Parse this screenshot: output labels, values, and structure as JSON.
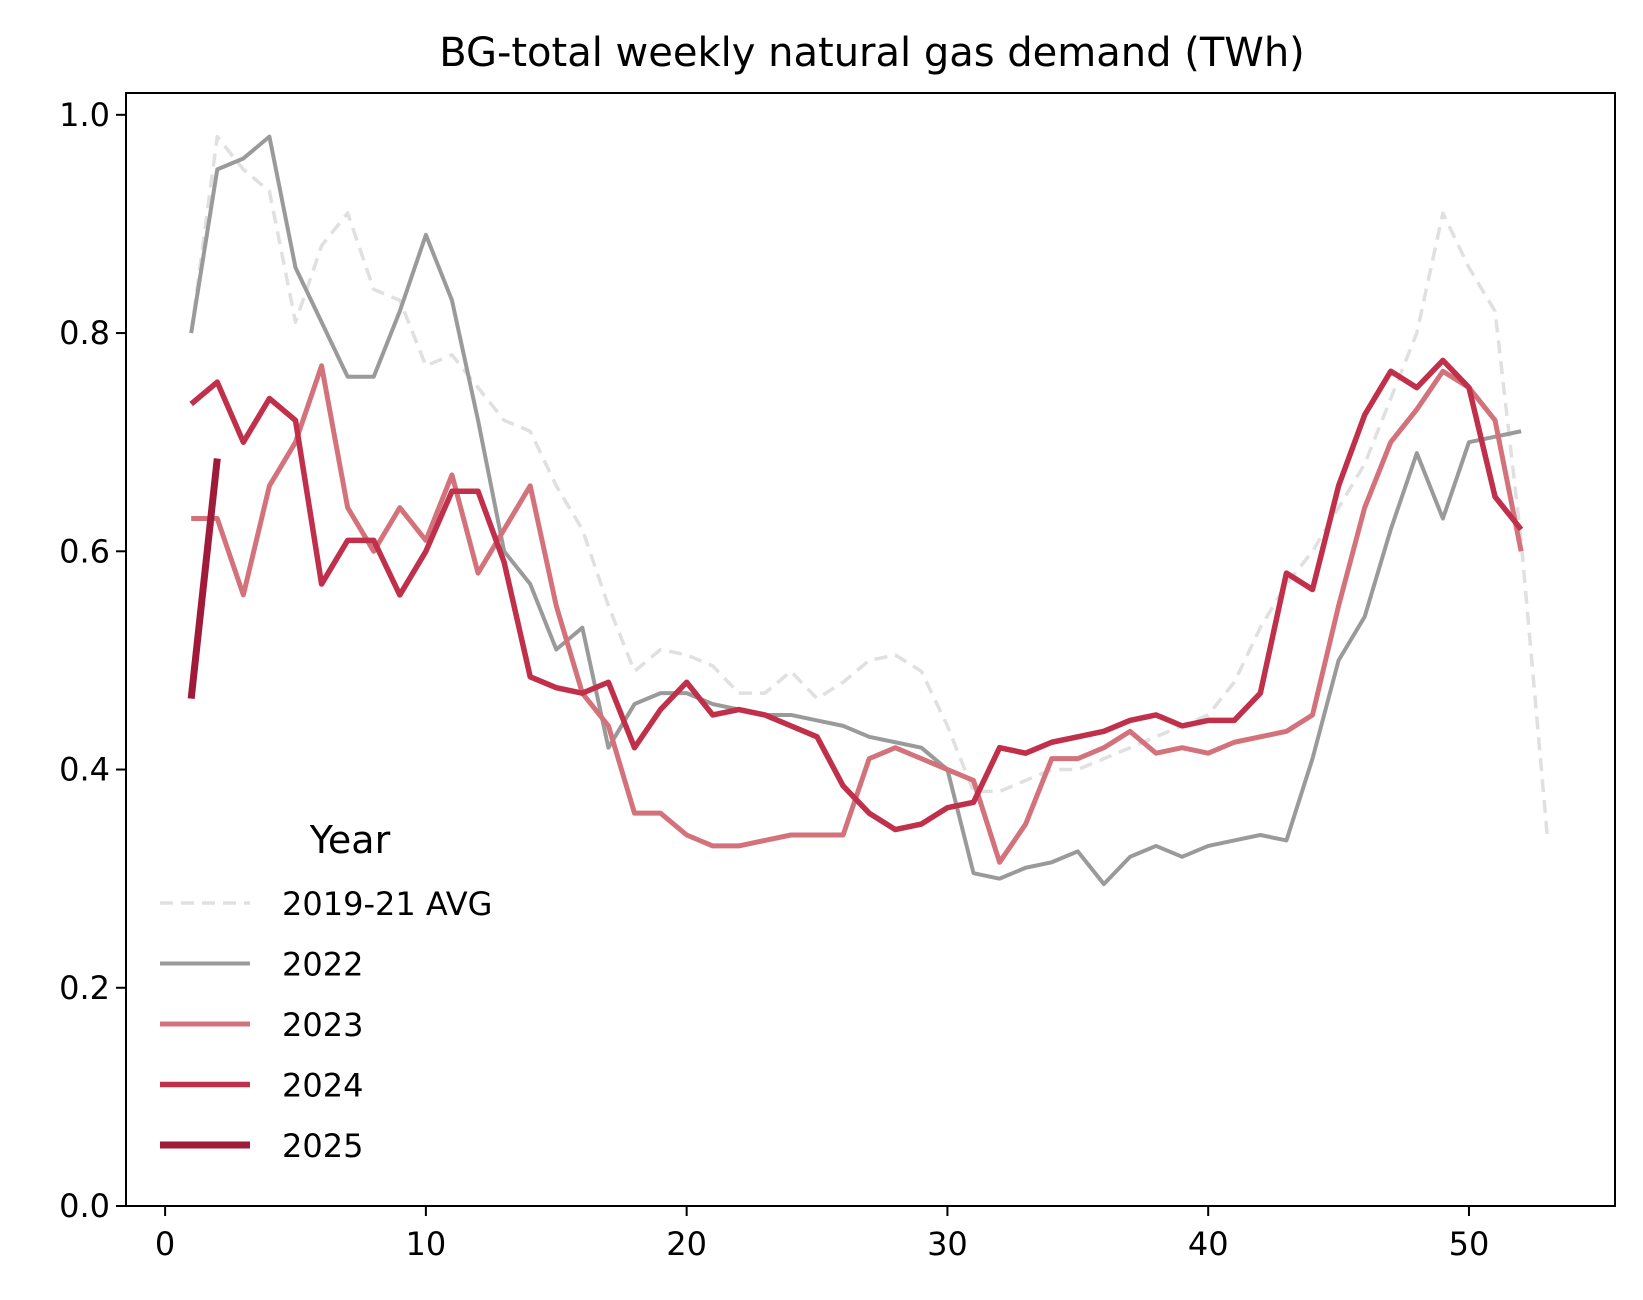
{
  "chart_data": {
    "type": "line",
    "title": "BG-total weekly natural gas demand (TWh)",
    "xlabel": "",
    "ylabel": "",
    "xlim": [
      -1.5,
      55.6
    ],
    "ylim": [
      0,
      1.02
    ],
    "xticks": [
      0,
      10,
      20,
      30,
      40,
      50
    ],
    "xtick_labels": [
      "0",
      "10",
      "20",
      "30",
      "40",
      "50"
    ],
    "yticks": [
      0,
      0.2,
      0.4,
      0.6,
      0.8,
      1.0
    ],
    "ytick_labels": [
      "0.0",
      "0.2",
      "0.4",
      "0.6",
      "0.8",
      "1.0"
    ],
    "grid": false,
    "legend": {
      "title": "Year",
      "placement": "lower-left"
    },
    "series": [
      {
        "name": "2019-21 AVG",
        "color": "#e0e0e0",
        "style": "dashed",
        "x": [
          1,
          2,
          3,
          4,
          5,
          6,
          7,
          8,
          9,
          10,
          11,
          12,
          13,
          14,
          15,
          16,
          17,
          18,
          19,
          20,
          21,
          22,
          23,
          24,
          25,
          26,
          27,
          28,
          29,
          30,
          31,
          32,
          33,
          34,
          35,
          36,
          37,
          38,
          39,
          40,
          41,
          42,
          43,
          44,
          45,
          46,
          47,
          48,
          49,
          50,
          51,
          52,
          53
        ],
        "values": [
          0.8,
          0.98,
          0.95,
          0.93,
          0.81,
          0.88,
          0.91,
          0.84,
          0.83,
          0.77,
          0.78,
          0.75,
          0.72,
          0.71,
          0.66,
          0.62,
          0.55,
          0.49,
          0.51,
          0.505,
          0.495,
          0.47,
          0.47,
          0.49,
          0.465,
          0.48,
          0.5,
          0.505,
          0.49,
          0.44,
          0.38,
          0.38,
          0.39,
          0.4,
          0.4,
          0.41,
          0.42,
          0.43,
          0.44,
          0.45,
          0.48,
          0.53,
          0.57,
          0.6,
          0.64,
          0.68,
          0.74,
          0.8,
          0.91,
          0.86,
          0.82,
          0.61,
          0.34
        ]
      },
      {
        "name": "2022",
        "color": "#9a9a9a",
        "style": "solid",
        "x": [
          1,
          2,
          3,
          4,
          5,
          6,
          7,
          8,
          9,
          10,
          11,
          12,
          13,
          14,
          15,
          16,
          17,
          18,
          19,
          20,
          21,
          22,
          23,
          24,
          25,
          26,
          27,
          28,
          29,
          30,
          31,
          32,
          33,
          34,
          35,
          36,
          37,
          38,
          39,
          40,
          41,
          42,
          43,
          44,
          45,
          46,
          47,
          48,
          49,
          50,
          51,
          52
        ],
        "values": [
          0.8,
          0.95,
          0.96,
          0.98,
          0.86,
          0.81,
          0.76,
          0.76,
          0.82,
          0.89,
          0.83,
          0.72,
          0.6,
          0.57,
          0.51,
          0.53,
          0.42,
          0.46,
          0.47,
          0.47,
          0.46,
          0.455,
          0.45,
          0.45,
          0.445,
          0.44,
          0.43,
          0.425,
          0.42,
          0.4,
          0.305,
          0.3,
          0.31,
          0.315,
          0.325,
          0.295,
          0.32,
          0.33,
          0.32,
          0.33,
          0.335,
          0.34,
          0.335,
          0.41,
          0.5,
          0.54,
          0.62,
          0.69,
          0.63,
          0.7,
          0.705,
          0.71
        ]
      },
      {
        "name": "2023",
        "color": "#d4727b",
        "style": "solid",
        "x": [
          1,
          2,
          3,
          4,
          5,
          6,
          7,
          8,
          9,
          10,
          11,
          12,
          13,
          14,
          15,
          16,
          17,
          18,
          19,
          20,
          21,
          22,
          23,
          24,
          25,
          26,
          27,
          28,
          29,
          30,
          31,
          32,
          33,
          34,
          35,
          36,
          37,
          38,
          39,
          40,
          41,
          42,
          43,
          44,
          45,
          46,
          47,
          48,
          49,
          50,
          51,
          52
        ],
        "values": [
          0.63,
          0.63,
          0.56,
          0.66,
          0.7,
          0.77,
          0.64,
          0.6,
          0.64,
          0.61,
          0.67,
          0.58,
          0.62,
          0.66,
          0.55,
          0.47,
          0.44,
          0.36,
          0.36,
          0.34,
          0.33,
          0.33,
          0.335,
          0.34,
          0.34,
          0.34,
          0.41,
          0.42,
          0.41,
          0.4,
          0.39,
          0.315,
          0.35,
          0.41,
          0.41,
          0.42,
          0.435,
          0.415,
          0.42,
          0.415,
          0.425,
          0.43,
          0.435,
          0.45,
          0.55,
          0.64,
          0.7,
          0.73,
          0.765,
          0.75,
          0.72,
          0.6
        ]
      },
      {
        "name": "2024",
        "color": "#c0304a",
        "style": "solid",
        "x": [
          1,
          2,
          3,
          4,
          5,
          6,
          7,
          8,
          9,
          10,
          11,
          12,
          13,
          14,
          15,
          16,
          17,
          18,
          19,
          20,
          21,
          22,
          23,
          24,
          25,
          26,
          27,
          28,
          29,
          30,
          31,
          32,
          33,
          34,
          35,
          36,
          37,
          38,
          39,
          40,
          41,
          42,
          43,
          44,
          45,
          46,
          47,
          48,
          49,
          50,
          51,
          52
        ],
        "values": [
          0.735,
          0.755,
          0.7,
          0.74,
          0.72,
          0.57,
          0.61,
          0.61,
          0.56,
          0.6,
          0.655,
          0.655,
          0.59,
          0.485,
          0.475,
          0.47,
          0.48,
          0.42,
          0.455,
          0.48,
          0.45,
          0.455,
          0.45,
          0.44,
          0.43,
          0.385,
          0.36,
          0.345,
          0.35,
          0.365,
          0.37,
          0.42,
          0.415,
          0.425,
          0.43,
          0.435,
          0.445,
          0.45,
          0.44,
          0.445,
          0.445,
          0.47,
          0.58,
          0.565,
          0.66,
          0.725,
          0.765,
          0.75,
          0.775,
          0.75,
          0.65,
          0.62
        ]
      },
      {
        "name": "2025",
        "color": "#a01a3a",
        "style": "solid",
        "x": [
          1,
          2
        ],
        "values": [
          0.465,
          0.685
        ]
      }
    ]
  }
}
